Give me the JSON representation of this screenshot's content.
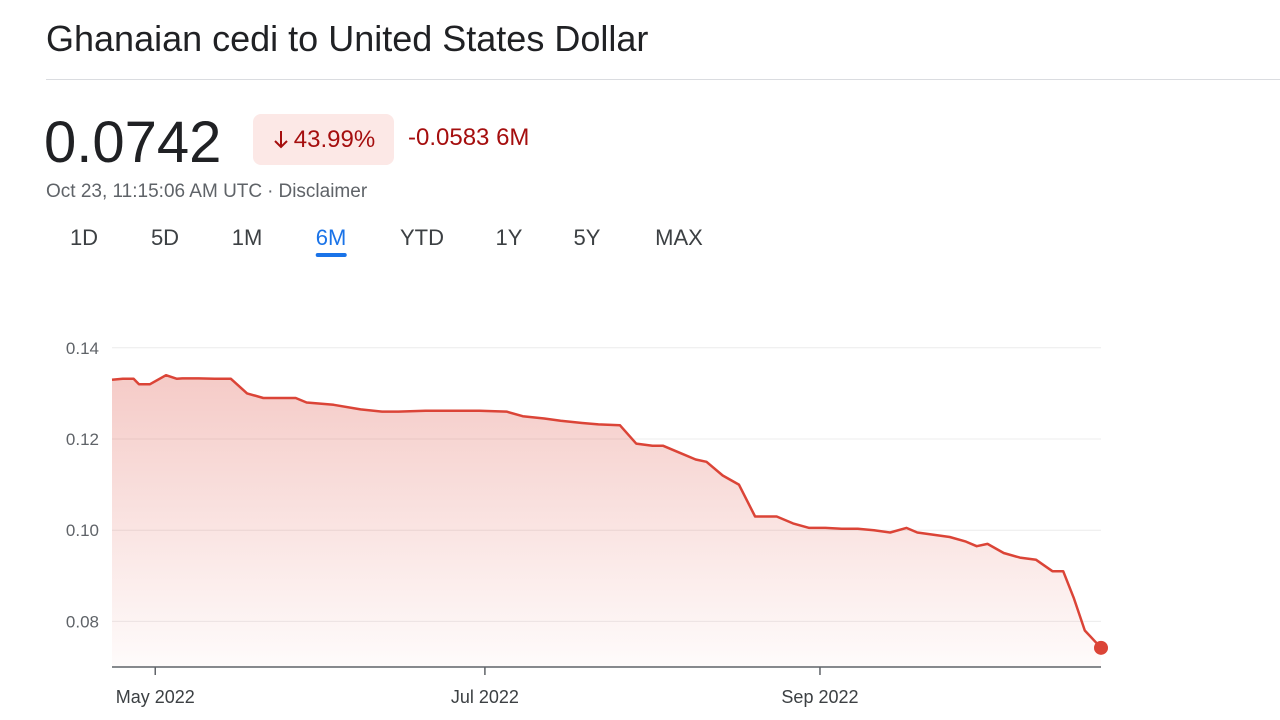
{
  "header": {
    "title": "Ghanaian cedi to United States Dollar"
  },
  "quote": {
    "price": "0.0742",
    "change_percent": "43.99%",
    "change_value": "-0.0583 6M",
    "timestamp": "Oct 23, 11:15:06 AM UTC",
    "separator": "·",
    "disclaimer": "Disclaimer"
  },
  "tabs": [
    {
      "label": "1D"
    },
    {
      "label": "5D"
    },
    {
      "label": "1M"
    },
    {
      "label": "6M",
      "active": true
    },
    {
      "label": "YTD"
    },
    {
      "label": "1Y"
    },
    {
      "label": "5Y"
    },
    {
      "label": "MAX"
    }
  ],
  "colors": {
    "line": "#db4437",
    "negative_text": "#a50e0e",
    "negative_bg": "#fce8e6",
    "accent": "#1a73e8"
  },
  "chart_data": {
    "type": "area",
    "ylim": [
      0.07,
      0.145
    ],
    "y_ticks": [
      0.08,
      0.1,
      0.12,
      0.14
    ],
    "y_tick_labels": [
      "0.08",
      "0.10",
      "0.12",
      "0.14"
    ],
    "x_ticks": [
      {
        "label": "May 2022",
        "date": "2022-05-01"
      },
      {
        "label": "Jul 2022",
        "date": "2022-07-01"
      },
      {
        "label": "Sep 2022",
        "date": "2022-09-01"
      }
    ],
    "xlim": [
      "2022-04-23",
      "2022-10-23"
    ],
    "grid": true,
    "series": [
      {
        "x": [
          "2022-04-23",
          "2022-04-25",
          "2022-04-27",
          "2022-04-28",
          "2022-04-30",
          "2022-05-03",
          "2022-05-05",
          "2022-05-06",
          "2022-05-09",
          "2022-05-12",
          "2022-05-15",
          "2022-05-18",
          "2022-05-21",
          "2022-05-24",
          "2022-05-27",
          "2022-05-29",
          "2022-06-03",
          "2022-06-08",
          "2022-06-12",
          "2022-06-15",
          "2022-06-20",
          "2022-06-25",
          "2022-06-30",
          "2022-07-05",
          "2022-07-08",
          "2022-07-12",
          "2022-07-15",
          "2022-07-19",
          "2022-07-22",
          "2022-07-26",
          "2022-07-29",
          "2022-08-01",
          "2022-08-03",
          "2022-08-06",
          "2022-08-09",
          "2022-08-11",
          "2022-08-14",
          "2022-08-17",
          "2022-08-20",
          "2022-08-24",
          "2022-08-27",
          "2022-08-30",
          "2022-09-02",
          "2022-09-05",
          "2022-09-08",
          "2022-09-11",
          "2022-09-14",
          "2022-09-17",
          "2022-09-19",
          "2022-09-22",
          "2022-09-25",
          "2022-09-28",
          "2022-09-30",
          "2022-10-02",
          "2022-10-05",
          "2022-10-08",
          "2022-10-11",
          "2022-10-14",
          "2022-10-16",
          "2022-10-18",
          "2022-10-20",
          "2022-10-23"
        ],
        "values": [
          0.133,
          0.1332,
          0.1332,
          0.132,
          0.132,
          0.134,
          0.1332,
          0.1333,
          0.1333,
          0.1332,
          0.1332,
          0.13,
          0.129,
          0.129,
          0.129,
          0.128,
          0.1275,
          0.1265,
          0.126,
          0.126,
          0.1262,
          0.1262,
          0.1262,
          0.126,
          0.125,
          0.1245,
          0.124,
          0.1235,
          0.1232,
          0.123,
          0.119,
          0.1185,
          0.1185,
          0.117,
          0.1155,
          0.115,
          0.112,
          0.11,
          0.103,
          0.103,
          0.1015,
          0.1005,
          0.1005,
          0.1003,
          0.1003,
          0.1,
          0.0995,
          0.1005,
          0.0995,
          0.099,
          0.0985,
          0.0975,
          0.0965,
          0.097,
          0.095,
          0.094,
          0.0935,
          0.091,
          0.091,
          0.085,
          0.078,
          0.0742
        ]
      }
    ]
  }
}
